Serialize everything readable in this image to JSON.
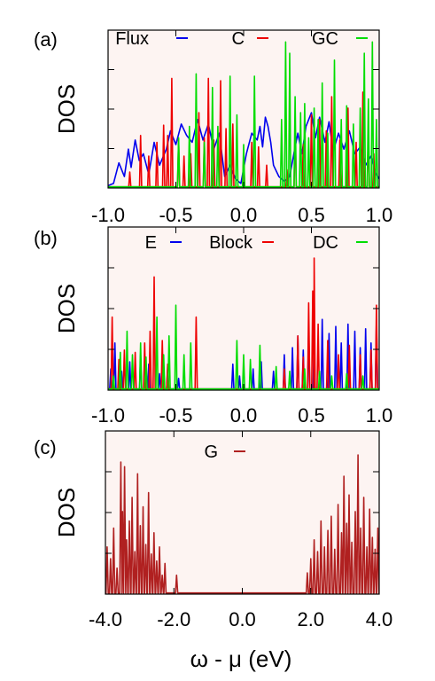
{
  "xlabel": "ω - μ (eV)",
  "chart_data": [
    {
      "type": "line",
      "panel": "(a)",
      "ylabel": "DOS",
      "xlim": [
        -1.0,
        1.0
      ],
      "ylim": [
        0,
        1
      ],
      "xticks": [
        -1.0,
        -0.5,
        0.0,
        0.5,
        1.0
      ],
      "xtick_labels": [
        "-1.0",
        "-0.5",
        "0.0",
        "0.5",
        "1.0"
      ],
      "background": "#fdf4f2",
      "legend_position": "top",
      "series": [
        {
          "name": "Flux",
          "color": "#0000ee",
          "points": [
            [
              -1.0,
              0.02
            ],
            [
              -0.96,
              0.04
            ],
            [
              -0.92,
              0.22
            ],
            [
              -0.88,
              0.1
            ],
            [
              -0.85,
              0.34
            ],
            [
              -0.83,
              0.18
            ],
            [
              -0.8,
              0.42
            ],
            [
              -0.77,
              0.24
            ],
            [
              -0.74,
              0.3
            ],
            [
              -0.7,
              0.12
            ],
            [
              -0.66,
              0.4
            ],
            [
              -0.62,
              0.2
            ],
            [
              -0.57,
              0.34
            ],
            [
              -0.54,
              0.5
            ],
            [
              -0.5,
              0.38
            ],
            [
              -0.46,
              0.56
            ],
            [
              -0.42,
              0.46
            ],
            [
              -0.38,
              0.4
            ],
            [
              -0.34,
              0.6
            ],
            [
              -0.3,
              0.42
            ],
            [
              -0.26,
              0.56
            ],
            [
              -0.22,
              0.34
            ],
            [
              -0.18,
              0.48
            ],
            [
              -0.14,
              0.1
            ],
            [
              -0.1,
              0.2
            ],
            [
              -0.06,
              0.08
            ],
            [
              -0.02,
              0.04
            ],
            [
              0.02,
              0.3
            ],
            [
              0.06,
              0.48
            ],
            [
              0.1,
              0.42
            ],
            [
              0.12,
              0.54
            ],
            [
              0.14,
              0.36
            ],
            [
              0.16,
              0.62
            ],
            [
              0.18,
              0.54
            ],
            [
              0.2,
              0.4
            ],
            [
              0.22,
              0.2
            ],
            [
              0.26,
              0.1
            ],
            [
              0.3,
              0.06
            ],
            [
              0.34,
              0.1
            ],
            [
              0.38,
              0.36
            ],
            [
              0.4,
              0.48
            ],
            [
              0.43,
              0.3
            ],
            [
              0.46,
              0.54
            ],
            [
              0.5,
              0.66
            ],
            [
              0.53,
              0.44
            ],
            [
              0.56,
              0.62
            ],
            [
              0.6,
              0.4
            ],
            [
              0.63,
              0.58
            ],
            [
              0.66,
              0.32
            ],
            [
              0.7,
              0.48
            ],
            [
              0.74,
              0.34
            ],
            [
              0.78,
              0.5
            ],
            [
              0.82,
              0.3
            ],
            [
              0.86,
              0.36
            ],
            [
              0.9,
              0.2
            ],
            [
              0.94,
              0.28
            ],
            [
              0.97,
              0.14
            ],
            [
              1.0,
              0.08
            ]
          ]
        },
        {
          "name": "C",
          "color": "#ee0000",
          "spikes": [
            [
              -0.84,
              0.14
            ],
            [
              -0.76,
              0.46
            ],
            [
              -0.7,
              0.28
            ],
            [
              -0.64,
              0.4
            ],
            [
              -0.59,
              0.55
            ],
            [
              -0.56,
              0.46
            ],
            [
              -0.53,
              0.96
            ],
            [
              -0.48,
              0.42
            ],
            [
              -0.44,
              0.28
            ],
            [
              -0.39,
              0.3
            ],
            [
              -0.33,
              0.66
            ],
            [
              -0.29,
              0.44
            ],
            [
              -0.26,
              0.96
            ],
            [
              -0.22,
              0.42
            ],
            [
              -0.17,
              0.94
            ],
            [
              -0.13,
              0.52
            ],
            [
              -0.08,
              0.56
            ],
            [
              0.0,
              0.28
            ],
            [
              0.06,
              0.4
            ],
            [
              0.11,
              0.36
            ],
            [
              0.17,
              0.2
            ],
            [
              0.32,
              0.16
            ],
            [
              0.38,
              0.56
            ],
            [
              0.44,
              0.38
            ],
            [
              0.5,
              0.64
            ],
            [
              0.56,
              0.6
            ],
            [
              0.61,
              0.5
            ],
            [
              0.65,
              0.8
            ],
            [
              0.71,
              0.42
            ],
            [
              0.77,
              0.7
            ],
            [
              0.83,
              0.4
            ],
            [
              0.88,
              0.84
            ],
            [
              0.92,
              0.52
            ],
            [
              0.96,
              0.3
            ]
          ]
        },
        {
          "name": "GC",
          "color": "#00dd00",
          "spikes": [
            [
              -0.48,
              0.44
            ],
            [
              -0.4,
              0.54
            ],
            [
              -0.35,
              1.0
            ],
            [
              -0.29,
              0.4
            ],
            [
              -0.23,
              0.88
            ],
            [
              -0.19,
              0.54
            ],
            [
              -0.1,
              0.98
            ],
            [
              -0.05,
              0.64
            ],
            [
              0.0,
              0.38
            ],
            [
              0.08,
              0.98
            ],
            [
              0.28,
              0.6
            ],
            [
              0.31,
              1.28
            ],
            [
              0.34,
              1.18
            ],
            [
              0.38,
              0.8
            ],
            [
              0.42,
              0.66
            ],
            [
              0.45,
              0.74
            ],
            [
              0.48,
              0.44
            ],
            [
              0.52,
              0.7
            ],
            [
              0.55,
              0.6
            ],
            [
              0.58,
              0.92
            ],
            [
              0.62,
              0.48
            ],
            [
              0.67,
              1.12
            ],
            [
              0.72,
              0.6
            ],
            [
              0.76,
              0.72
            ],
            [
              0.81,
              0.56
            ],
            [
              0.86,
              0.7
            ],
            [
              0.89,
              1.18
            ],
            [
              0.92,
              0.78
            ],
            [
              0.95,
              1.28
            ],
            [
              0.98,
              0.6
            ]
          ]
        }
      ]
    },
    {
      "type": "line",
      "panel": "(b)",
      "ylabel": "DOS",
      "xlim": [
        -1.0,
        1.0
      ],
      "ylim": [
        0,
        1
      ],
      "xticks": [
        -1.0,
        -0.5,
        0.0,
        0.5,
        1.0
      ],
      "xtick_labels": [
        "-1.0",
        "-0.5",
        "0.0",
        "0.5",
        "1.0"
      ],
      "background": "#fdf4f2",
      "legend_position": "top",
      "series": [
        {
          "name": "E",
          "color": "#0000ee",
          "spikes": [
            [
              -0.98,
              0.18
            ],
            [
              -0.95,
              0.4
            ],
            [
              -0.9,
              0.16
            ],
            [
              -0.84,
              0.24
            ],
            [
              -0.76,
              0.3
            ],
            [
              -0.7,
              0.22
            ],
            [
              -0.62,
              0.14
            ],
            [
              -0.56,
              0.2
            ],
            [
              -0.48,
              0.1
            ],
            [
              -0.08,
              0.22
            ],
            [
              -0.03,
              0.12
            ],
            [
              0.07,
              0.18
            ],
            [
              0.13,
              0.24
            ],
            [
              0.22,
              0.16
            ],
            [
              0.3,
              0.3
            ],
            [
              0.36,
              0.36
            ],
            [
              0.4,
              0.46
            ],
            [
              0.44,
              0.34
            ],
            [
              0.48,
              0.52
            ],
            [
              0.52,
              0.4
            ],
            [
              0.58,
              0.6
            ],
            [
              0.63,
              0.48
            ],
            [
              0.68,
              0.54
            ],
            [
              0.72,
              0.4
            ],
            [
              0.77,
              0.56
            ],
            [
              0.82,
              0.5
            ],
            [
              0.86,
              0.36
            ],
            [
              0.9,
              0.52
            ],
            [
              0.94,
              0.4
            ],
            [
              0.98,
              0.6
            ]
          ]
        },
        {
          "name": "Block",
          "color": "#ee0000",
          "spikes": [
            [
              -0.97,
              0.62
            ],
            [
              -0.92,
              0.26
            ],
            [
              -0.88,
              0.34
            ],
            [
              -0.8,
              0.32
            ],
            [
              -0.73,
              0.4
            ],
            [
              -0.69,
              0.5
            ],
            [
              -0.66,
              0.96
            ],
            [
              -0.6,
              0.42
            ],
            [
              -0.56,
              0.22
            ],
            [
              -0.35,
              0.62
            ],
            [
              0.3,
              0.18
            ],
            [
              0.4,
              0.46
            ],
            [
              0.44,
              0.28
            ],
            [
              0.48,
              0.74
            ],
            [
              0.51,
              0.84
            ],
            [
              0.52,
              1.12
            ],
            [
              0.55,
              0.56
            ],
            [
              0.62,
              0.42
            ],
            [
              0.7,
              0.3
            ],
            [
              0.78,
              0.38
            ],
            [
              0.86,
              0.3
            ],
            [
              0.94,
              0.34
            ],
            [
              0.98,
              0.72
            ]
          ]
        },
        {
          "name": "DC",
          "color": "#00dd00",
          "spikes": [
            [
              -0.96,
              0.12
            ],
            [
              -0.91,
              0.32
            ],
            [
              -0.86,
              0.5
            ],
            [
              -0.82,
              0.3
            ],
            [
              -0.76,
              0.4
            ],
            [
              -0.72,
              0.28
            ],
            [
              -0.64,
              0.62
            ],
            [
              -0.59,
              0.3
            ],
            [
              -0.55,
              0.46
            ],
            [
              -0.5,
              0.72
            ],
            [
              -0.44,
              0.3
            ],
            [
              -0.39,
              0.4
            ],
            [
              -0.05,
              0.42
            ],
            [
              0.0,
              0.3
            ],
            [
              0.05,
              0.26
            ],
            [
              0.12,
              0.38
            ],
            [
              0.24,
              0.2
            ],
            [
              0.34,
              0.16
            ],
            [
              0.45,
              0.18
            ],
            [
              0.56,
              0.16
            ],
            [
              0.65,
              0.12
            ],
            [
              0.76,
              0.14
            ],
            [
              0.88,
              0.12
            ]
          ]
        }
      ]
    },
    {
      "type": "line",
      "panel": "(c)",
      "ylabel": "DOS",
      "xlim": [
        -4.0,
        4.0
      ],
      "ylim": [
        0,
        1
      ],
      "xticks": [
        -4.0,
        -2.0,
        0.0,
        2.0,
        4.0
      ],
      "xtick_labels": [
        "-4.0",
        "-2.0",
        "0.0",
        "2.0",
        "4.0"
      ],
      "background": "#fdf4f2",
      "legend_position": "top",
      "series": [
        {
          "name": "G",
          "color": "#b02020",
          "spikes": [
            [
              -3.95,
              0.4
            ],
            [
              -3.85,
              0.3
            ],
            [
              -3.76,
              0.56
            ],
            [
              -3.66,
              0.22
            ],
            [
              -3.55,
              1.12
            ],
            [
              -3.5,
              0.7
            ],
            [
              -3.44,
              1.08
            ],
            [
              -3.38,
              0.46
            ],
            [
              -3.3,
              0.62
            ],
            [
              -3.22,
              0.82
            ],
            [
              -3.14,
              0.36
            ],
            [
              -3.06,
              1.02
            ],
            [
              -2.98,
              0.58
            ],
            [
              -2.9,
              0.74
            ],
            [
              -2.82,
              0.42
            ],
            [
              -2.74,
              0.86
            ],
            [
              -2.66,
              0.34
            ],
            [
              -2.58,
              0.52
            ],
            [
              -2.5,
              0.28
            ],
            [
              -2.42,
              0.4
            ],
            [
              -2.34,
              0.16
            ],
            [
              -2.26,
              0.26
            ],
            [
              -1.92,
              0.16
            ],
            [
              1.9,
              0.18
            ],
            [
              2.0,
              0.3
            ],
            [
              2.1,
              0.46
            ],
            [
              2.2,
              0.36
            ],
            [
              2.3,
              0.62
            ],
            [
              2.4,
              0.4
            ],
            [
              2.5,
              0.54
            ],
            [
              2.6,
              0.66
            ],
            [
              2.7,
              0.38
            ],
            [
              2.8,
              0.76
            ],
            [
              2.9,
              0.52
            ],
            [
              2.97,
              1.0
            ],
            [
              3.05,
              0.6
            ],
            [
              3.12,
              0.84
            ],
            [
              3.2,
              0.44
            ],
            [
              3.3,
              0.7
            ],
            [
              3.38,
              1.18
            ],
            [
              3.46,
              0.56
            ],
            [
              3.55,
              0.82
            ],
            [
              3.64,
              0.4
            ],
            [
              3.72,
              0.72
            ],
            [
              3.8,
              0.48
            ],
            [
              3.88,
              0.38
            ],
            [
              3.96,
              0.56
            ]
          ]
        }
      ]
    }
  ]
}
